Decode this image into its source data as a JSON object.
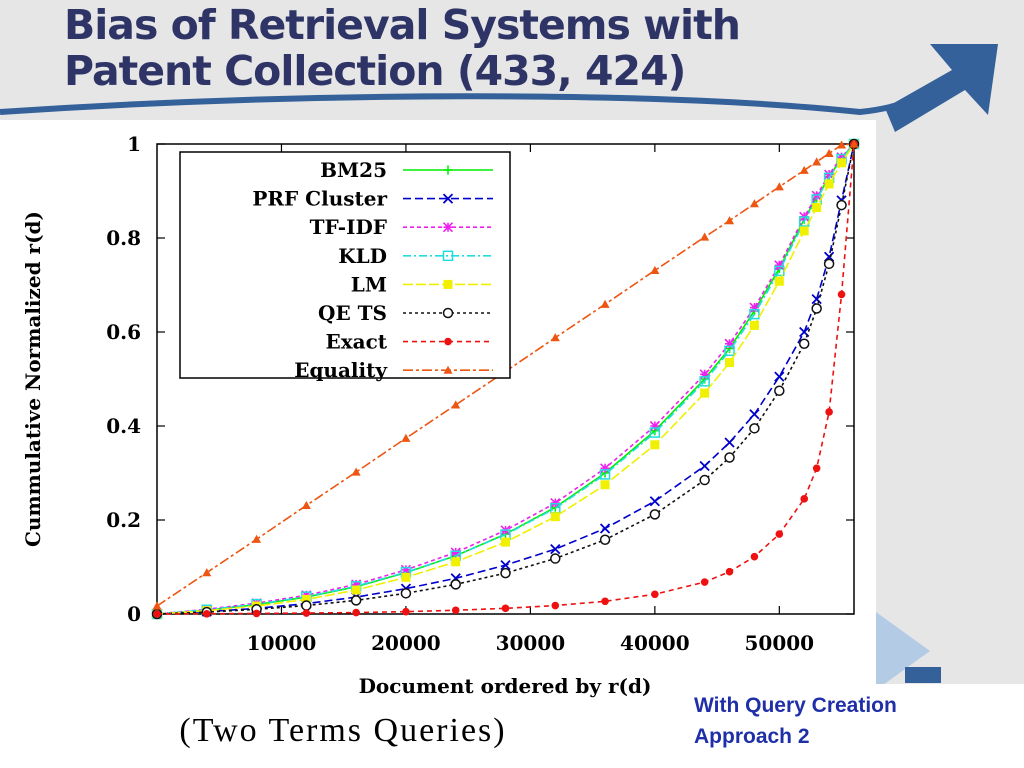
{
  "slide": {
    "title": "Bias of Retrieval Systems with Patent Collection (433, 424)",
    "note": "With Query Creation\nApproach 2",
    "caption": "(Two Terms Queries)",
    "theme": {
      "title_color": "#2e3566",
      "accent_blue": "#34619a",
      "light_blue": "#b4cbe6",
      "note_color": "#1f2fa8"
    }
  },
  "chart_data": {
    "type": "line",
    "title": "",
    "xlabel": "Document ordered by r(d)",
    "ylabel": "Cummulative Normalized r(d)",
    "xlim": [
      0,
      56000
    ],
    "ylim": [
      0,
      1
    ],
    "xticks": [
      10000,
      20000,
      30000,
      40000,
      50000
    ],
    "yticks": [
      0,
      0.2,
      0.4,
      0.6,
      0.8,
      1
    ],
    "ytick_labels": [
      "0",
      "0.2",
      "0.4",
      "0.6",
      "0.8",
      "1"
    ],
    "grid": false,
    "legend_position": "top-left",
    "x": [
      0,
      4000,
      8000,
      12000,
      16000,
      20000,
      24000,
      28000,
      32000,
      36000,
      40000,
      44000,
      46000,
      48000,
      50000,
      52000,
      53000,
      54000,
      55000,
      56000
    ],
    "series": [
      {
        "name": "BM25",
        "color": "#00ee00",
        "marker": "plus",
        "dash": "",
        "values": [
          0,
          0.008,
          0.02,
          0.036,
          0.058,
          0.088,
          0.124,
          0.17,
          0.227,
          0.3,
          0.39,
          0.5,
          0.565,
          0.645,
          0.735,
          0.84,
          0.885,
          0.93,
          0.97,
          1
        ]
      },
      {
        "name": "PRF Cluster",
        "color": "#0000cc",
        "marker": "x",
        "dash": "8,4",
        "values": [
          0,
          0.005,
          0.012,
          0.022,
          0.036,
          0.054,
          0.076,
          0.104,
          0.138,
          0.182,
          0.24,
          0.315,
          0.365,
          0.425,
          0.505,
          0.6,
          0.67,
          0.76,
          0.88,
          1
        ]
      },
      {
        "name": "TF-IDF",
        "color": "#ee22ee",
        "marker": "star",
        "dash": "4,3",
        "values": [
          0,
          0.01,
          0.023,
          0.04,
          0.063,
          0.094,
          0.131,
          0.178,
          0.236,
          0.31,
          0.4,
          0.51,
          0.575,
          0.652,
          0.742,
          0.845,
          0.89,
          0.935,
          0.972,
          1
        ]
      },
      {
        "name": "KLD",
        "color": "#22dddd",
        "marker": "box",
        "dash": "8,3,2,3",
        "values": [
          0,
          0.009,
          0.021,
          0.037,
          0.059,
          0.089,
          0.124,
          0.169,
          0.225,
          0.297,
          0.386,
          0.495,
          0.56,
          0.638,
          0.73,
          0.835,
          0.882,
          0.928,
          0.968,
          1
        ]
      },
      {
        "name": "LM",
        "color": "#f0f000",
        "marker": "fbox",
        "dash": "10,3",
        "values": [
          0,
          0.007,
          0.017,
          0.031,
          0.051,
          0.078,
          0.111,
          0.153,
          0.207,
          0.275,
          0.36,
          0.47,
          0.535,
          0.614,
          0.708,
          0.815,
          0.865,
          0.915,
          0.96,
          1
        ]
      },
      {
        "name": "QE TS",
        "color": "#111111",
        "marker": "circle",
        "dash": "3,3",
        "values": [
          0,
          0.004,
          0.01,
          0.018,
          0.029,
          0.044,
          0.063,
          0.087,
          0.118,
          0.158,
          0.212,
          0.285,
          0.333,
          0.395,
          0.475,
          0.575,
          0.65,
          0.745,
          0.87,
          1
        ]
      },
      {
        "name": "Exact",
        "color": "#ee1111",
        "marker": "fcircle",
        "dash": "5,4",
        "values": [
          0,
          0.0005,
          0.0012,
          0.002,
          0.003,
          0.005,
          0.008,
          0.012,
          0.018,
          0.027,
          0.042,
          0.068,
          0.09,
          0.122,
          0.17,
          0.245,
          0.31,
          0.43,
          0.68,
          1
        ]
      },
      {
        "name": "Equality",
        "color": "#ee5511",
        "marker": "triangle",
        "dash": "10,3,3,3",
        "values": [
          0.017,
          0.088,
          0.159,
          0.231,
          0.302,
          0.374,
          0.445,
          0.516,
          0.588,
          0.659,
          0.731,
          0.802,
          0.837,
          0.873,
          0.909,
          0.944,
          0.962,
          0.98,
          0.998,
          1
        ]
      }
    ]
  }
}
